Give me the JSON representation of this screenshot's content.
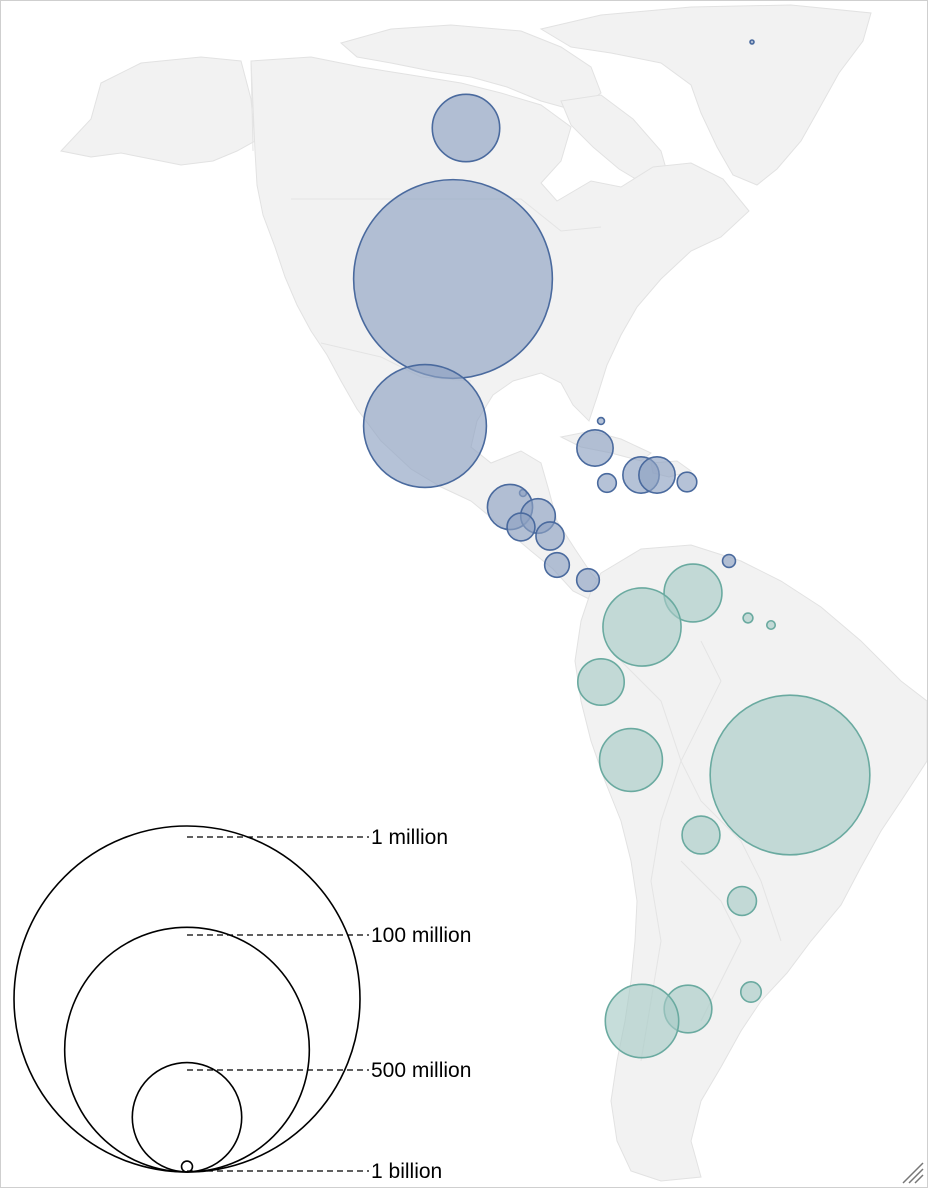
{
  "chart_data": {
    "type": "bubble-map",
    "region": "Americas",
    "title": "",
    "colors": {
      "north_central_america": {
        "fill": "#8ea1c2",
        "stroke": "#4a6a9e"
      },
      "south_america": {
        "fill": "#a8cbc6",
        "stroke": "#6aaaa0"
      },
      "land": "#f2f2f2",
      "land_border": "#e2e2e2"
    },
    "bubbles": [
      {
        "group": "north_central_america",
        "value": 0.057
      },
      {
        "group": "north_central_america",
        "value": 38
      },
      {
        "group": "north_central_america",
        "value": 330
      },
      {
        "group": "north_central_america",
        "value": 126
      },
      {
        "group": "north_central_america",
        "value": 0.4
      },
      {
        "group": "north_central_america",
        "value": 11
      },
      {
        "group": "north_central_america",
        "value": 2.9
      },
      {
        "group": "north_central_america",
        "value": 11
      },
      {
        "group": "north_central_america",
        "value": 11
      },
      {
        "group": "north_central_america",
        "value": 3.2
      },
      {
        "group": "north_central_america",
        "value": 0.4
      },
      {
        "group": "north_central_america",
        "value": 17
      },
      {
        "group": "north_central_america",
        "value": 10
      },
      {
        "group": "north_central_america",
        "value": 6.5
      },
      {
        "group": "north_central_america",
        "value": 6.6
      },
      {
        "group": "north_central_america",
        "value": 5.1
      },
      {
        "group": "north_central_america",
        "value": 4.3
      },
      {
        "group": "north_central_america",
        "value": 1.4
      },
      {
        "group": "south_america",
        "value": 28
      },
      {
        "group": "south_america",
        "value": 51
      },
      {
        "group": "south_america",
        "value": 0.8
      },
      {
        "group": "south_america",
        "value": 0.6
      },
      {
        "group": "south_america",
        "value": 18
      },
      {
        "group": "south_america",
        "value": 33
      },
      {
        "group": "south_america",
        "value": 213
      },
      {
        "group": "south_america",
        "value": 12
      },
      {
        "group": "south_america",
        "value": 7
      },
      {
        "group": "south_america",
        "value": 19
      },
      {
        "group": "south_america",
        "value": 45
      },
      {
        "group": "south_america",
        "value": 3.5
      }
    ],
    "size_legend": [
      {
        "label": "1 million",
        "value": 1
      },
      {
        "label": "100 million",
        "value": 100
      },
      {
        "label": "500 million",
        "value": 500
      },
      {
        "label": "1 billion",
        "value": 1000
      }
    ]
  }
}
